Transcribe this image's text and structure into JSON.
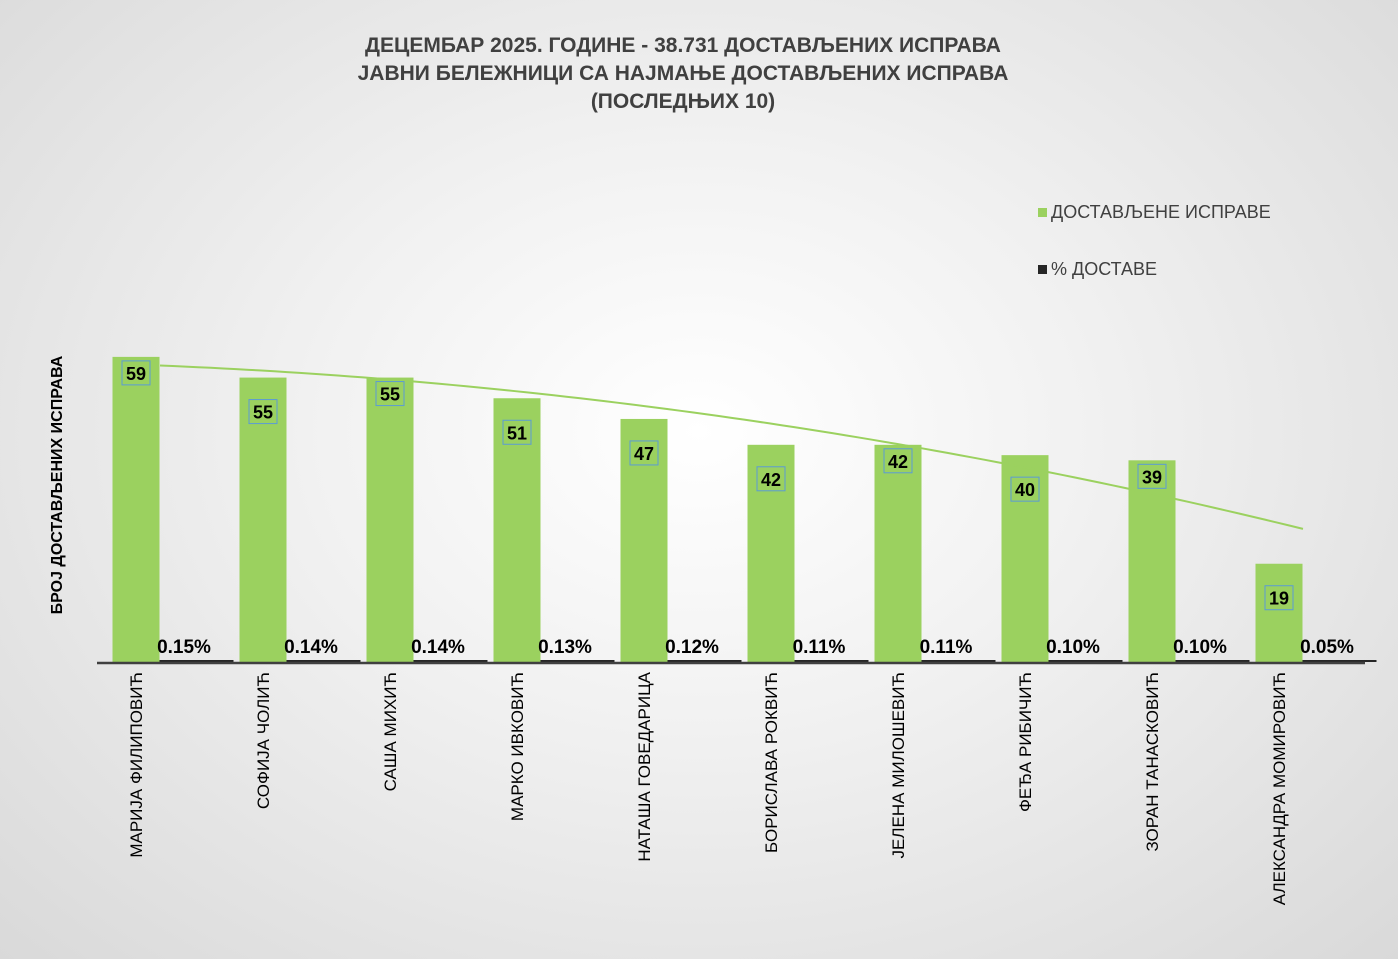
{
  "chart_data": {
    "type": "bar",
    "title": [
      "ДЕЦЕМБАР 2025. ГОДИНЕ - 38.731 ДОСТАВЉЕНИХ ИСПРАВА",
      "ЈАВНИ БЕЛЕЖНИЦИ СА НАЈМАЊЕ ДОСТАВЉЕНИХ ИСПРАВА",
      "(ПОСЛЕДЊИХ 10)"
    ],
    "ylabel": "БРОЈ ДОСТАВЉЕНИХ ИСПРАВА",
    "xlabel": "",
    "categories": [
      "МАРИЈА ФИЛИПОВИЋ",
      "СОФИЈА ЧОЛИЋ",
      "САША МИХИЋ",
      "МАРКО ИВКОВИЋ",
      "НАТАША ГОВЕДАРИЦА",
      "БОРИСЛАВА РОКВИЋ",
      "ЈЕЛЕНА МИЛОШЕВИЋ",
      "ФЕЂА РИБИЧИЋ",
      "ЗОРАН ТАНАСКОВИЋ",
      "АЛЕКСАНДРА МОМИРОВИЋ"
    ],
    "series": [
      {
        "name": "ДОСТАВЉЕНЕ ИСПРАВЕ",
        "color": "#9bd15f",
        "values": [
          59,
          55,
          55,
          51,
          47,
          42,
          42,
          40,
          39,
          19
        ]
      },
      {
        "name": "% ДОСТАВЕ",
        "color": "#262626",
        "values": [
          0.15,
          0.14,
          0.14,
          0.13,
          0.12,
          0.11,
          0.11,
          0.1,
          0.1,
          0.05
        ],
        "labels": [
          "0.15%",
          "0.14%",
          "0.14%",
          "0.13%",
          "0.12%",
          "0.11%",
          "0.11%",
          "0.10%",
          "0.10%",
          "0.05%"
        ]
      }
    ],
    "trendline": {
      "type": "polynomial",
      "series": "ДОСТАВЉЕНЕ ИСПРАВЕ",
      "color": "#9bd15f"
    },
    "ylim": [
      0,
      70
    ],
    "grid": false,
    "y_axis_ticks_shown": false,
    "legend": "top-right"
  }
}
